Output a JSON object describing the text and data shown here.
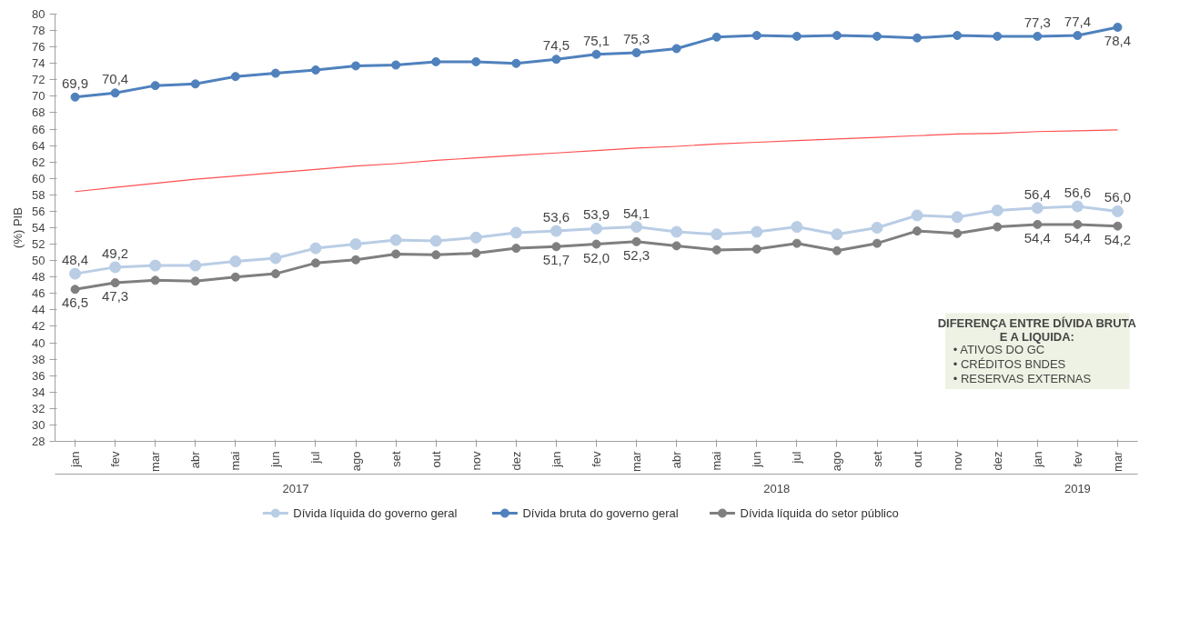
{
  "chart_data": {
    "type": "line",
    "ylabel": "(%) PIB",
    "categories": [
      "jan",
      "fev",
      "mar",
      "abr",
      "mai",
      "jun",
      "jul",
      "ago",
      "set",
      "out",
      "nov",
      "dez",
      "jan",
      "fev",
      "mar",
      "abr",
      "mai",
      "jun",
      "jul",
      "ago",
      "set",
      "out",
      "nov",
      "dez",
      "jan",
      "fev",
      "mar"
    ],
    "ylim": [
      28,
      80
    ],
    "yticks": [
      28,
      30,
      32,
      34,
      36,
      38,
      40,
      42,
      44,
      46,
      48,
      50,
      52,
      54,
      56,
      58,
      60,
      62,
      64,
      66,
      68,
      70,
      72,
      74,
      76,
      78,
      80
    ],
    "grid": false,
    "legend": "bottom",
    "marker": "circle",
    "line_style": "solid",
    "series": [
      {
        "name": "Dívida líquida do governo geral",
        "color": "#b9cde5",
        "values": [
          48.4,
          49.2,
          49.4,
          49.4,
          49.9,
          50.3,
          51.5,
          52.0,
          52.5,
          52.4,
          52.8,
          53.4,
          53.6,
          53.9,
          54.1,
          53.5,
          53.2,
          53.5,
          54.1,
          53.2,
          54.0,
          55.5,
          55.3,
          56.1,
          56.4,
          56.6,
          56.0
        ],
        "value_labels": [
          "48,4",
          "49,2",
          null,
          null,
          null,
          null,
          null,
          null,
          null,
          null,
          null,
          null,
          "53,6",
          "53,9",
          "54,1",
          null,
          null,
          null,
          null,
          null,
          null,
          null,
          null,
          null,
          "56,4",
          "56,6",
          "56,0"
        ]
      },
      {
        "name": "Dívida bruta do governo geral",
        "color": "#4f81bd",
        "values": [
          69.9,
          70.4,
          71.3,
          71.5,
          72.4,
          72.8,
          73.2,
          73.7,
          73.8,
          74.2,
          74.2,
          74.0,
          74.5,
          75.1,
          75.3,
          75.8,
          77.2,
          77.4,
          77.3,
          77.4,
          77.3,
          77.1,
          77.4,
          77.3,
          77.3,
          77.4,
          78.4
        ],
        "value_labels": [
          "69,9",
          "70,4",
          null,
          null,
          null,
          null,
          null,
          null,
          null,
          null,
          null,
          null,
          "74,5",
          "75,1",
          "75,3",
          null,
          null,
          null,
          null,
          null,
          null,
          null,
          null,
          null,
          "77,3",
          "77,4",
          "78,4"
        ]
      },
      {
        "name": "Dívida líquida do setor público",
        "color": "#7f7f7f",
        "values": [
          46.5,
          47.3,
          47.6,
          47.5,
          48.0,
          48.4,
          49.7,
          50.1,
          50.8,
          50.7,
          50.9,
          51.5,
          51.7,
          52.0,
          52.3,
          51.8,
          51.3,
          51.4,
          52.1,
          51.2,
          52.1,
          53.6,
          53.3,
          54.1,
          54.4,
          54.4,
          54.2
        ],
        "value_labels": [
          "46,5",
          "47,3",
          null,
          null,
          null,
          null,
          null,
          null,
          null,
          null,
          null,
          null,
          "51,7",
          "52,0",
          "52,3",
          null,
          null,
          null,
          null,
          null,
          null,
          null,
          null,
          null,
          "54,4",
          "54,4",
          "54,2"
        ]
      },
      {
        "color": "#ff5050",
        "marker": "none",
        "values": [
          58.4,
          58.9,
          59.4,
          59.9,
          60.3,
          60.7,
          61.1,
          61.5,
          61.8,
          62.2,
          62.5,
          62.8,
          63.1,
          63.4,
          63.7,
          63.9,
          64.2,
          64.4,
          64.6,
          64.8,
          65.0,
          65.2,
          65.4,
          65.5,
          65.7,
          65.8,
          65.9
        ]
      }
    ],
    "annotations": [
      "2017",
      "2018",
      "2019",
      "DIFERENÇA ENTRE DÍVIDA BRUTA E A LIQUIDA:",
      "• ATIVOS DO GC",
      "• CRÉDITOS BNDES",
      "• RESERVAS EXTERNAS"
    ]
  }
}
